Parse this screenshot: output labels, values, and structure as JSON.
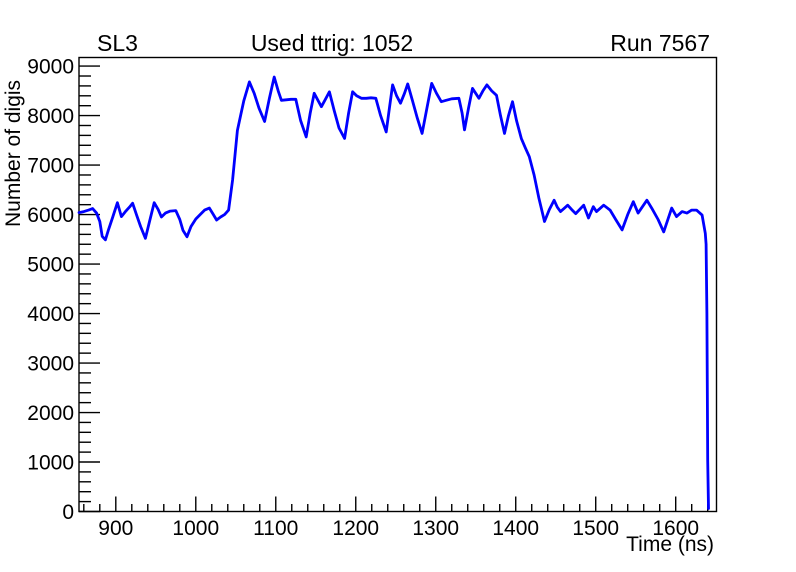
{
  "header": {
    "left": "SL3",
    "center": "Used ttrig: 1052",
    "right": "Run 7567"
  },
  "colors": {
    "line": "#0000ff",
    "axis": "#000000",
    "background": "#ffffff"
  },
  "chart_data": {
    "type": "line",
    "title": "Used ttrig: 1052",
    "pad_label_left": "SL3",
    "pad_label_right": "Run 7567",
    "xlabel": "Time (ns)",
    "ylabel": "Number of digis",
    "xlim": [
      854,
      1651
    ],
    "ylim": [
      0,
      9174
    ],
    "x_major_ticks": [
      900,
      1000,
      1100,
      1200,
      1300,
      1400,
      1500,
      1600
    ],
    "x_minor_step": 20,
    "y_major_ticks": [
      0,
      1000,
      2000,
      3000,
      4000,
      5000,
      6000,
      7000,
      8000,
      9000
    ],
    "y_minor_step": 200,
    "grid": false,
    "legend": null,
    "line_color": "#0000ff",
    "line_width": 2.8,
    "series": [
      {
        "name": "number-of-digis-vs-time",
        "points": [
          [
            854,
            6040
          ],
          [
            860,
            6060
          ],
          [
            866,
            6090
          ],
          [
            871,
            6120
          ],
          [
            876,
            6030
          ],
          [
            880,
            5860
          ],
          [
            883,
            5560
          ],
          [
            887,
            5490
          ],
          [
            891,
            5700
          ],
          [
            896,
            5940
          ],
          [
            902,
            6240
          ],
          [
            907,
            5960
          ],
          [
            912,
            6060
          ],
          [
            917,
            6150
          ],
          [
            921,
            6230
          ],
          [
            926,
            5990
          ],
          [
            931,
            5760
          ],
          [
            937,
            5520
          ],
          [
            942,
            5850
          ],
          [
            948,
            6240
          ],
          [
            953,
            6100
          ],
          [
            957,
            5950
          ],
          [
            962,
            6030
          ],
          [
            968,
            6070
          ],
          [
            975,
            6080
          ],
          [
            980,
            5900
          ],
          [
            984,
            5680
          ],
          [
            989,
            5550
          ],
          [
            994,
            5760
          ],
          [
            1000,
            5910
          ],
          [
            1006,
            6010
          ],
          [
            1011,
            6090
          ],
          [
            1017,
            6130
          ],
          [
            1022,
            6000
          ],
          [
            1026,
            5890
          ],
          [
            1031,
            5950
          ],
          [
            1036,
            6000
          ],
          [
            1041,
            6090
          ],
          [
            1046,
            6700
          ],
          [
            1052,
            7700
          ],
          [
            1056,
            8000
          ],
          [
            1060,
            8300
          ],
          [
            1067,
            8680
          ],
          [
            1073,
            8450
          ],
          [
            1079,
            8150
          ],
          [
            1086,
            7880
          ],
          [
            1092,
            8350
          ],
          [
            1098,
            8780
          ],
          [
            1103,
            8500
          ],
          [
            1107,
            8310
          ],
          [
            1113,
            8320
          ],
          [
            1119,
            8330
          ],
          [
            1125,
            8330
          ],
          [
            1131,
            7900
          ],
          [
            1138,
            7570
          ],
          [
            1143,
            8050
          ],
          [
            1148,
            8450
          ],
          [
            1153,
            8300
          ],
          [
            1157,
            8180
          ],
          [
            1162,
            8330
          ],
          [
            1167,
            8480
          ],
          [
            1173,
            8100
          ],
          [
            1179,
            7750
          ],
          [
            1186,
            7540
          ],
          [
            1191,
            8050
          ],
          [
            1196,
            8480
          ],
          [
            1201,
            8400
          ],
          [
            1207,
            8350
          ],
          [
            1213,
            8350
          ],
          [
            1219,
            8360
          ],
          [
            1225,
            8350
          ],
          [
            1231,
            8000
          ],
          [
            1238,
            7670
          ],
          [
            1242,
            8150
          ],
          [
            1246,
            8620
          ],
          [
            1251,
            8400
          ],
          [
            1256,
            8250
          ],
          [
            1261,
            8450
          ],
          [
            1265,
            8640
          ],
          [
            1271,
            8300
          ],
          [
            1277,
            7950
          ],
          [
            1283,
            7640
          ],
          [
            1289,
            8150
          ],
          [
            1295,
            8650
          ],
          [
            1301,
            8450
          ],
          [
            1307,
            8280
          ],
          [
            1313,
            8310
          ],
          [
            1320,
            8340
          ],
          [
            1329,
            8350
          ],
          [
            1333,
            8050
          ],
          [
            1336,
            7710
          ],
          [
            1341,
            8150
          ],
          [
            1346,
            8550
          ],
          [
            1350,
            8450
          ],
          [
            1354,
            8350
          ],
          [
            1359,
            8500
          ],
          [
            1364,
            8620
          ],
          [
            1370,
            8500
          ],
          [
            1376,
            8410
          ],
          [
            1381,
            8000
          ],
          [
            1386,
            7640
          ],
          [
            1391,
            8000
          ],
          [
            1396,
            8280
          ],
          [
            1401,
            7900
          ],
          [
            1407,
            7540
          ],
          [
            1412,
            7350
          ],
          [
            1417,
            7170
          ],
          [
            1423,
            6800
          ],
          [
            1429,
            6330
          ],
          [
            1436,
            5860
          ],
          [
            1442,
            6100
          ],
          [
            1448,
            6290
          ],
          [
            1452,
            6150
          ],
          [
            1456,
            6060
          ],
          [
            1461,
            6130
          ],
          [
            1465,
            6190
          ],
          [
            1470,
            6100
          ],
          [
            1475,
            6020
          ],
          [
            1485,
            6190
          ],
          [
            1491,
            5930
          ],
          [
            1497,
            6160
          ],
          [
            1501,
            6060
          ],
          [
            1510,
            6190
          ],
          [
            1518,
            6090
          ],
          [
            1525,
            5900
          ],
          [
            1533,
            5690
          ],
          [
            1540,
            6000
          ],
          [
            1547,
            6260
          ],
          [
            1553,
            6030
          ],
          [
            1564,
            6290
          ],
          [
            1570,
            6130
          ],
          [
            1578,
            5900
          ],
          [
            1585,
            5650
          ],
          [
            1595,
            6130
          ],
          [
            1601,
            5960
          ],
          [
            1608,
            6060
          ],
          [
            1614,
            6030
          ],
          [
            1620,
            6090
          ],
          [
            1626,
            6090
          ],
          [
            1633,
            5990
          ],
          [
            1637,
            5620
          ],
          [
            1638,
            5400
          ],
          [
            1639,
            4000
          ],
          [
            1640,
            1040
          ],
          [
            1641,
            60
          ]
        ]
      }
    ]
  }
}
